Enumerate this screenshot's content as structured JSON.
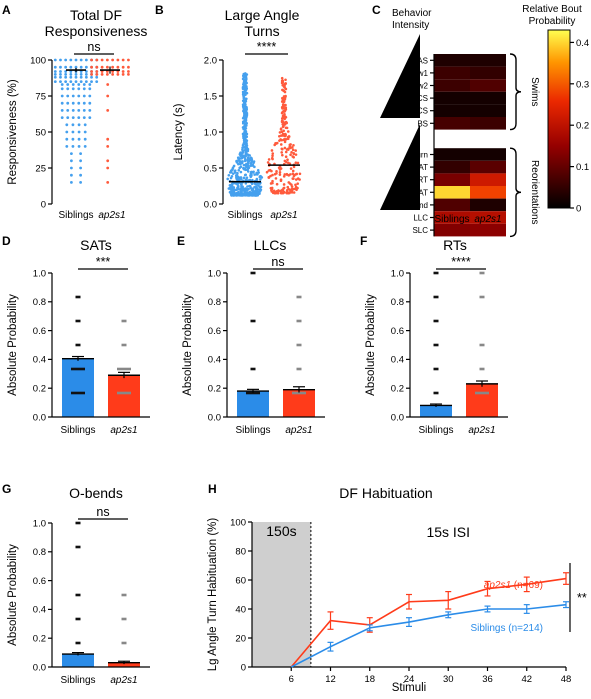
{
  "colors": {
    "siblings": "#2b8ce8",
    "ap2s1": "#ff3b1a",
    "dots_sib": "#45a0ee",
    "dots_ap": "#ff5a3c"
  },
  "panels": {
    "A": {
      "letter": "A",
      "title": "Total DF\nResponsiveness",
      "ylabel": "Responsiveness (%)",
      "sig": "ns",
      "xcats": [
        "Siblings",
        "ap2s1"
      ],
      "yticks": [
        "0",
        "25",
        "50",
        "75",
        "100"
      ]
    },
    "B": {
      "letter": "B",
      "title": "Large Angle\nTurns",
      "ylabel": "Latency (s)",
      "sig": "****",
      "xcats": [
        "Siblings",
        "ap2s1"
      ],
      "yticks": [
        "0.0",
        "0.5",
        "1.0",
        "1.5",
        "2.0"
      ]
    },
    "C": {
      "letter": "C",
      "behavior_label": "Behavior\nIntensity",
      "colorbar_label": "Relative Bout\nProbability",
      "colorbar_ticks": [
        "0",
        "0.1",
        "0.2",
        "0.3",
        "0.4"
      ],
      "rows_swims": [
        "AS",
        "Slow1",
        "Slow2",
        "Short CS",
        "Long CS",
        "BS"
      ],
      "rows_reorient": [
        "J-turn",
        "HAT",
        "RT",
        "SAT",
        "O-bend",
        "LLC",
        "SLC"
      ],
      "group_swims": "Swims",
      "group_reorient": "Reorientations",
      "xcats": [
        "Siblings",
        "ap2s1"
      ]
    },
    "D": {
      "letter": "D",
      "title": "SATs",
      "ylabel": "Absolute Probability",
      "sig": "***",
      "xcats": [
        "Siblings",
        "ap2s1"
      ],
      "yticks": [
        "0.0",
        "0.2",
        "0.4",
        "0.6",
        "0.8",
        "1.0"
      ]
    },
    "E": {
      "letter": "E",
      "title": "LLCs",
      "ylabel": "Absolute Probability",
      "sig": "ns",
      "xcats": [
        "Siblings",
        "ap2s1"
      ],
      "yticks": [
        "0.0",
        "0.2",
        "0.4",
        "0.6",
        "0.8",
        "1.0"
      ]
    },
    "F": {
      "letter": "F",
      "title": "RTs",
      "ylabel": "Absolute Probability",
      "sig": "****",
      "xcats": [
        "Siblings",
        "ap2s1"
      ],
      "yticks": [
        "0.0",
        "0.2",
        "0.4",
        "0.6",
        "0.8",
        "1.0"
      ]
    },
    "G": {
      "letter": "G",
      "title": "O-bends",
      "ylabel": "Absolute Probability",
      "sig": "ns",
      "xcats": [
        "Siblings",
        "ap2s1"
      ],
      "yticks": [
        "0.0",
        "0.2",
        "0.4",
        "0.6",
        "0.8",
        "1.0"
      ]
    },
    "H": {
      "letter": "H",
      "title": "DF Habituation",
      "ylabel": "Lg Angle Turn Habituation (%)",
      "xlabel": "Stimuli",
      "shade_label": "150s",
      "isi_label": "15s ISI",
      "sig": "**",
      "legend_ap": "ap2s1",
      "legend_ap_n": " (n=69)",
      "legend_sib": "Siblings (n=214)",
      "xticks": [
        "6",
        "12",
        "18",
        "24",
        "30",
        "36",
        "42",
        "48"
      ],
      "yticks": [
        "0",
        "20",
        "40",
        "60",
        "80",
        "100"
      ]
    }
  },
  "chart_data": [
    {
      "panel": "A",
      "type": "bar",
      "categories": [
        "Siblings",
        "ap2s1"
      ],
      "values": [
        93,
        93
      ],
      "errors": [
        1.5,
        2.5
      ],
      "ylim": [
        0,
        100
      ],
      "ylabel": "Responsiveness (%)"
    },
    {
      "panel": "B",
      "type": "scatter",
      "categories": [
        "Siblings",
        "ap2s1"
      ],
      "means": [
        0.31,
        0.54
      ],
      "ylim": [
        0,
        2.0
      ],
      "ylabel": "Latency (s)"
    },
    {
      "panel": "C",
      "type": "heatmap",
      "x": [
        "Siblings",
        "ap2s1"
      ],
      "y": [
        "AS",
        "Slow1",
        "Slow2",
        "Short CS",
        "Long CS",
        "BS",
        "J-turn",
        "HAT",
        "RT",
        "SAT",
        "O-bend",
        "LLC",
        "SLC"
      ],
      "values": [
        [
          0.03,
          0.03
        ],
        [
          0.06,
          0.05
        ],
        [
          0.06,
          0.08
        ],
        [
          0.02,
          0.02
        ],
        [
          0.02,
          0.02
        ],
        [
          0.07,
          0.06
        ],
        [
          0.02,
          0.02
        ],
        [
          0.05,
          0.09
        ],
        [
          0.12,
          0.22
        ],
        [
          0.4,
          0.28
        ],
        [
          0.08,
          0.03
        ],
        [
          0.18,
          0.19
        ],
        [
          0.13,
          0.14
        ]
      ],
      "zlim": [
        0,
        0.43
      ]
    },
    {
      "panel": "D",
      "type": "bar",
      "categories": [
        "Siblings",
        "ap2s1"
      ],
      "values": [
        0.405,
        0.29
      ],
      "errors": [
        0.015,
        0.02
      ],
      "ylim": [
        0,
        1.0
      ]
    },
    {
      "panel": "E",
      "type": "bar",
      "categories": [
        "Siblings",
        "ap2s1"
      ],
      "values": [
        0.18,
        0.19
      ],
      "errors": [
        0.012,
        0.02
      ],
      "ylim": [
        0,
        1.0
      ]
    },
    {
      "panel": "F",
      "type": "bar",
      "categories": [
        "Siblings",
        "ap2s1"
      ],
      "values": [
        0.08,
        0.23
      ],
      "errors": [
        0.01,
        0.02
      ],
      "ylim": [
        0,
        1.0
      ]
    },
    {
      "panel": "G",
      "type": "bar",
      "categories": [
        "Siblings",
        "ap2s1"
      ],
      "values": [
        0.09,
        0.03
      ],
      "errors": [
        0.01,
        0.01
      ],
      "ylim": [
        0,
        1.0
      ]
    },
    {
      "panel": "H",
      "type": "line",
      "x": [
        6,
        12,
        18,
        24,
        30,
        36,
        42,
        48
      ],
      "xlim": [
        0,
        48
      ],
      "ylim": [
        0,
        100
      ],
      "series": [
        {
          "name": "ap2s1",
          "values": [
            0,
            32,
            29,
            45,
            46,
            54,
            57,
            61
          ],
          "errors": [
            0,
            6,
            5,
            5,
            6,
            5,
            5,
            4
          ]
        },
        {
          "name": "Siblings",
          "values": [
            0,
            14,
            27,
            31,
            36,
            40,
            40,
            43
          ],
          "errors": [
            0,
            3,
            2,
            3,
            2,
            2,
            3,
            2
          ]
        }
      ]
    }
  ]
}
